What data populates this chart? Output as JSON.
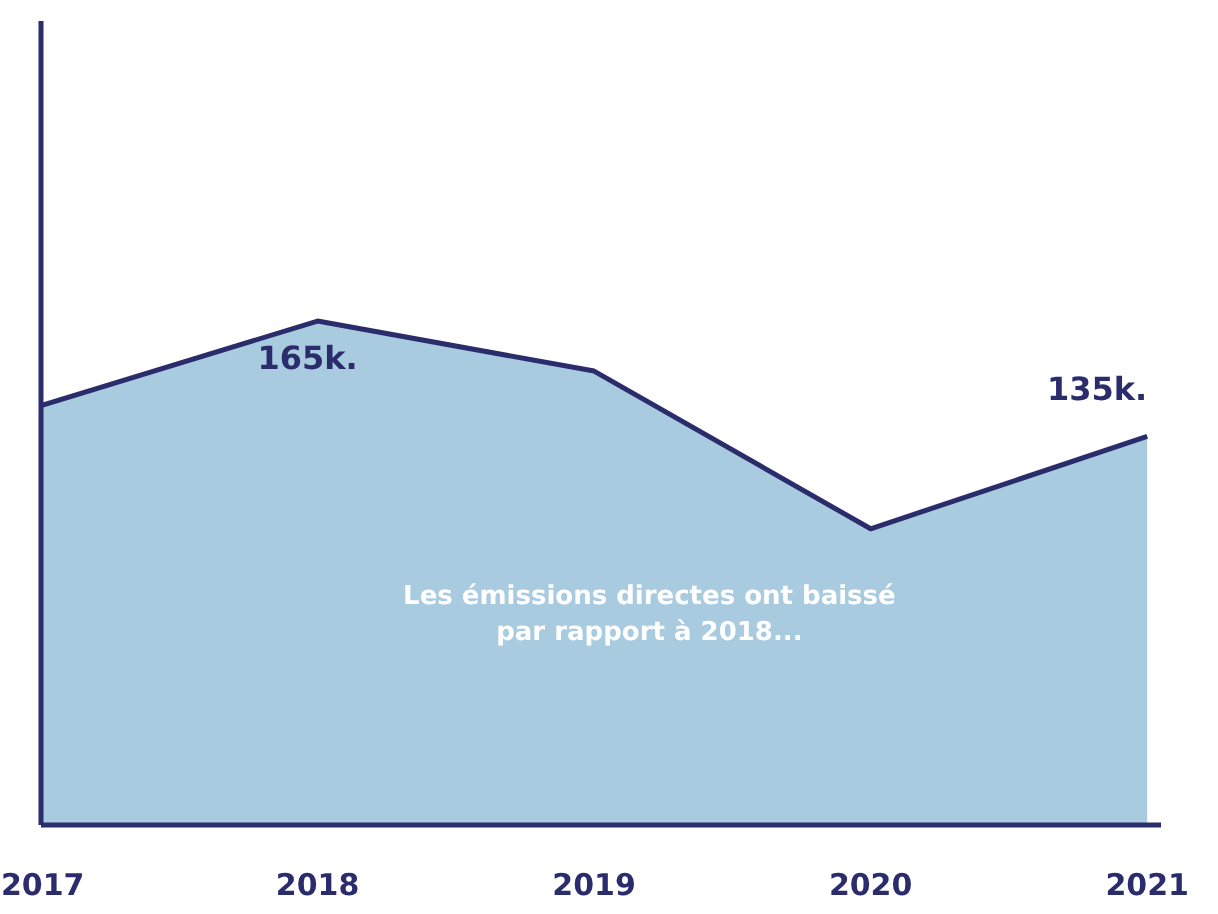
{
  "chart_data": {
    "type": "area",
    "categories": [
      "2017",
      "2018",
      "2019",
      "2020",
      "2021"
    ],
    "series": [
      {
        "color": "#a9cbe0",
        "values": [
          143,
          165,
          152,
          111,
          135
        ],
        "value_labels": [
          null,
          "165k.",
          null,
          null,
          "135k."
        ]
      }
    ],
    "ylim": [
      34,
      243
    ],
    "grid": false,
    "annotations": [
      "Les émissions directes ont baissé\npar rapport à 2018..."
    ]
  }
}
